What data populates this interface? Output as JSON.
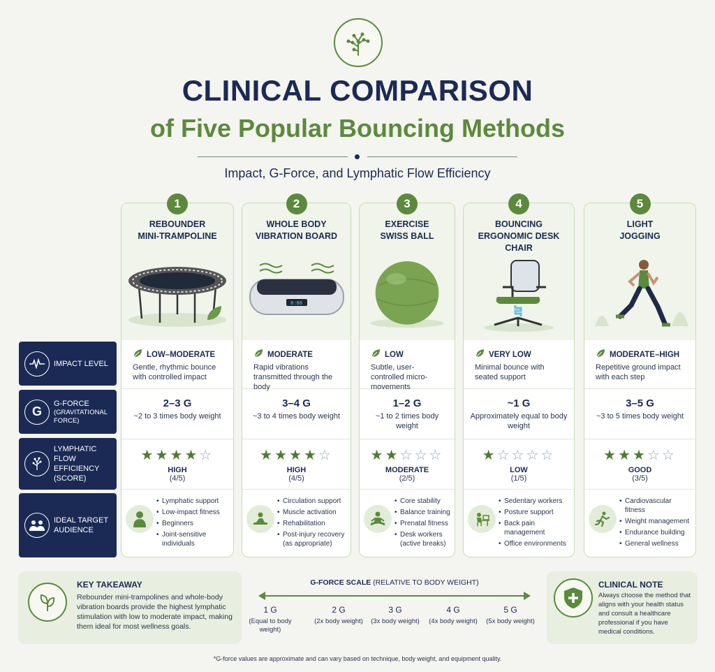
{
  "header": {
    "title_line1": "CLINICAL COMPARISON",
    "title_line2": "of Five Popular Bouncing Methods",
    "subtitle": "Impact, G-Force, and Lymphatic Flow Efficiency"
  },
  "row_labels": {
    "impact": "IMPACT LEVEL",
    "gforce_main": "G-FORCE",
    "gforce_sub": "(GRAVITATIONAL FORCE)",
    "lymphatic": "LYMPHATIC FLOW EFFICIENCY (SCORE)",
    "audience": "IDEAL TARGET AUDIENCE"
  },
  "methods": [
    {
      "number": "1",
      "title": "REBOUNDER\nMINI-TRAMPOLINE",
      "impact_level": "LOW–MODERATE",
      "impact_desc": "Gentle, rhythmic bounce with controlled impact",
      "g_value": "2–3 G",
      "g_desc": "~2 to 3 times body weight",
      "stars": 4,
      "lym_level": "HIGH",
      "lym_score": "(4/5)",
      "audience_icon": "person-icon",
      "audience": [
        "Lymphatic support",
        "Low-impact fitness",
        "Beginners",
        "Joint-sensitive individuals"
      ]
    },
    {
      "number": "2",
      "title": "WHOLE BODY\nVIBRATION BOARD",
      "impact_level": "MODERATE",
      "impact_desc": "Rapid vibrations transmitted through the body",
      "g_value": "3–4 G",
      "g_desc": "~3 to 4 times body weight",
      "stars": 4,
      "lym_level": "HIGH",
      "lym_score": "(4/5)",
      "audience_icon": "rehab-icon",
      "audience": [
        "Circulation support",
        "Muscle activation",
        "Rehabilitation",
        "Post-injury recovery (as appropriate)"
      ]
    },
    {
      "number": "3",
      "title": "EXERCISE\nSWISS BALL",
      "impact_level": "LOW",
      "impact_desc": "Subtle, user-controlled micro-movements",
      "g_value": "1–2 G",
      "g_desc": "~1 to 2 times body weight",
      "stars": 2,
      "lym_level": "MODERATE",
      "lym_score": "(2/5)",
      "audience_icon": "meditation-icon",
      "audience": [
        "Core stability",
        "Balance training",
        "Prenatal fitness",
        "Desk workers (active breaks)"
      ]
    },
    {
      "number": "4",
      "title": "BOUNCING\nERGONOMIC DESK CHAIR",
      "impact_level": "VERY LOW",
      "impact_desc": "Minimal bounce with seated support",
      "g_value": "~1 G",
      "g_desc": "Approximately equal to body weight",
      "stars": 1,
      "lym_level": "LOW",
      "lym_score": "(1/5)",
      "audience_icon": "desk-worker-icon",
      "audience": [
        "Sedentary workers",
        "Posture support",
        "Back pain management",
        "Office environments"
      ]
    },
    {
      "number": "5",
      "title": "LIGHT\nJOGGING",
      "impact_level": "MODERATE–HIGH",
      "impact_desc": "Repetitive ground impact with each step",
      "g_value": "3–5 G",
      "g_desc": "~3 to 5 times body weight",
      "stars": 3,
      "lym_level": "GOOD",
      "lym_score": "(3/5)",
      "audience_icon": "runner-icon",
      "audience": [
        "Cardiovascular fitness",
        "Weight management",
        "Endurance building",
        "General wellness"
      ]
    }
  ],
  "key_takeaway": {
    "title": "KEY TAKEAWAY",
    "body": "Rebounder mini-trampolines and whole-body vibration boards provide the highest lymphatic stimulation with low to moderate impact, making them ideal for most wellness goals."
  },
  "gscale": {
    "title_bold": "G-FORCE SCALE",
    "title_rest": "(RELATIVE TO BODY WEIGHT)",
    "ticks": [
      {
        "value": "1 G",
        "note": "(Equal to body weight)"
      },
      {
        "value": "2 G",
        "note": "(2x body weight)"
      },
      {
        "value": "3 G",
        "note": "(3x body weight)"
      },
      {
        "value": "4 G",
        "note": "(4x body weight)"
      },
      {
        "value": "5 G",
        "note": "(5x body weight)"
      }
    ]
  },
  "clinical_note": {
    "title": "CLINICAL NOTE",
    "body": "Always choose the method that aligns with your health status and consult a healthcare professional if you have medical conditions."
  },
  "footnote": "*G-force values are approximate and can vary based on technique, body weight, and equipment quality.",
  "colors": {
    "navy": "#1b2a55",
    "green": "#5b8a3c",
    "panel": "#e8eee0"
  }
}
